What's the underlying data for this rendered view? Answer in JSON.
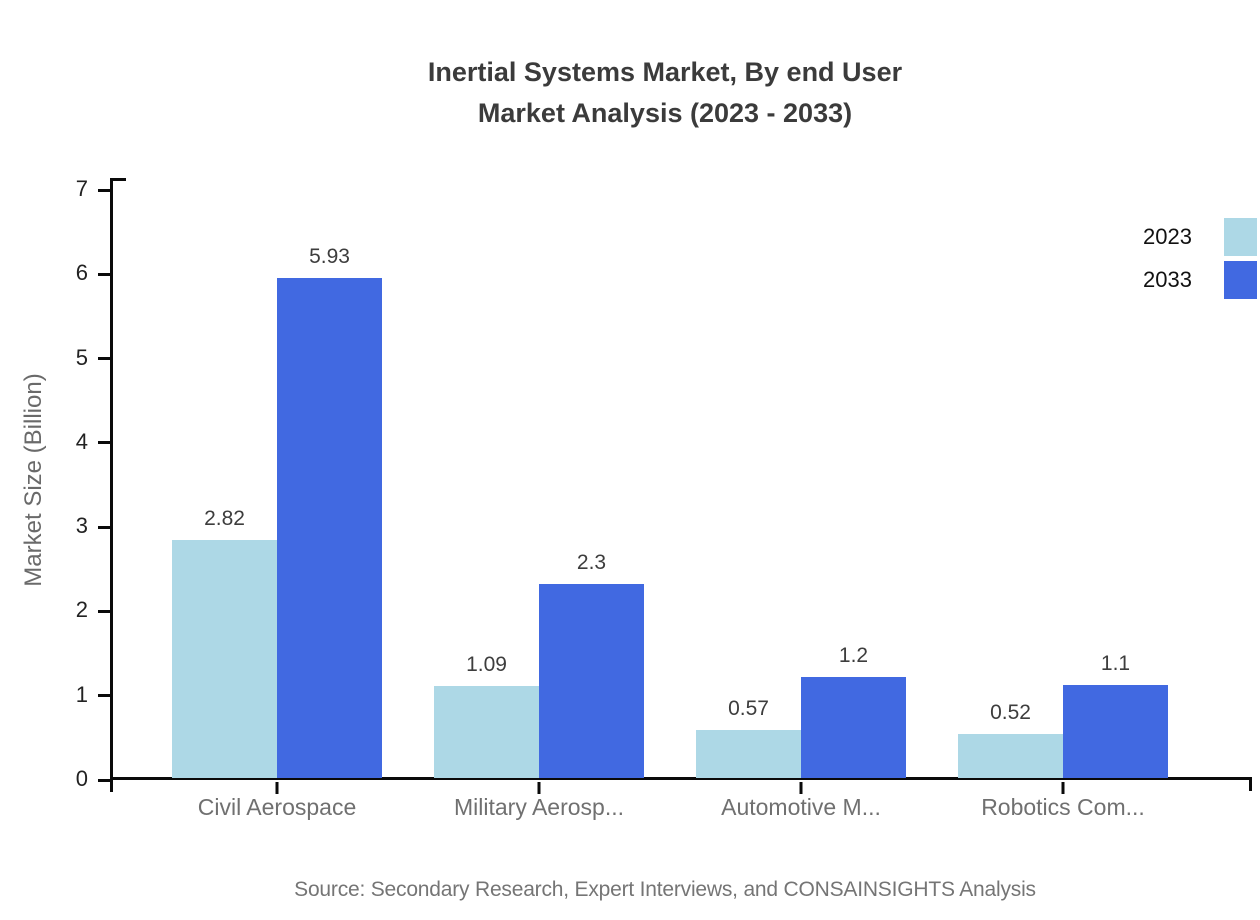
{
  "title": {
    "line1": "Inertial Systems Market, By end User",
    "line2": "Market Analysis (2023 - 2033)"
  },
  "y_axis": {
    "title": "Market Size (Billion)"
  },
  "source": "Source: Secondary Research, Expert Interviews, and CONSAINSIGHTS Analysis",
  "legend": {
    "position": "top-right",
    "items": [
      {
        "label": "2023",
        "color": "#add8e6"
      },
      {
        "label": "2033",
        "color": "#4169e1"
      }
    ]
  },
  "chart_data": {
    "type": "bar",
    "title": "Inertial Systems Market, By end User — Market Analysis (2023 - 2033)",
    "categories": [
      "Civil Aerospace",
      "Military Aerosp...",
      "Automotive M...",
      "Robotics Com..."
    ],
    "series": [
      {
        "name": "2023",
        "color": "#add8e6",
        "values": [
          2.82,
          1.09,
          0.57,
          0.52
        ],
        "value_labels": [
          "2.82",
          "1.09",
          "0.57",
          "0.52"
        ]
      },
      {
        "name": "2033",
        "color": "#4169e1",
        "values": [
          5.93,
          2.3,
          1.2,
          1.1
        ],
        "value_labels": [
          "5.93",
          "2.3",
          "1.2",
          "1.1"
        ]
      }
    ],
    "xlabel": "",
    "ylabel": "Market Size (Billion)",
    "ylim": [
      0,
      7
    ],
    "yticks": [
      0,
      1,
      2,
      3,
      4,
      5,
      6,
      7
    ],
    "grid": false,
    "legend_position": "top-right"
  },
  "colors": {
    "background": "#ffffff",
    "axis": "#0a0a0a",
    "title_text": "#3b3b3b",
    "tick_label_text": "#222222",
    "category_text": "#707070",
    "value_label_text": "#3d3d3d",
    "y_axis_title_text": "#6a6a6a",
    "legend_text": "#111111",
    "source_text": "#757575"
  }
}
